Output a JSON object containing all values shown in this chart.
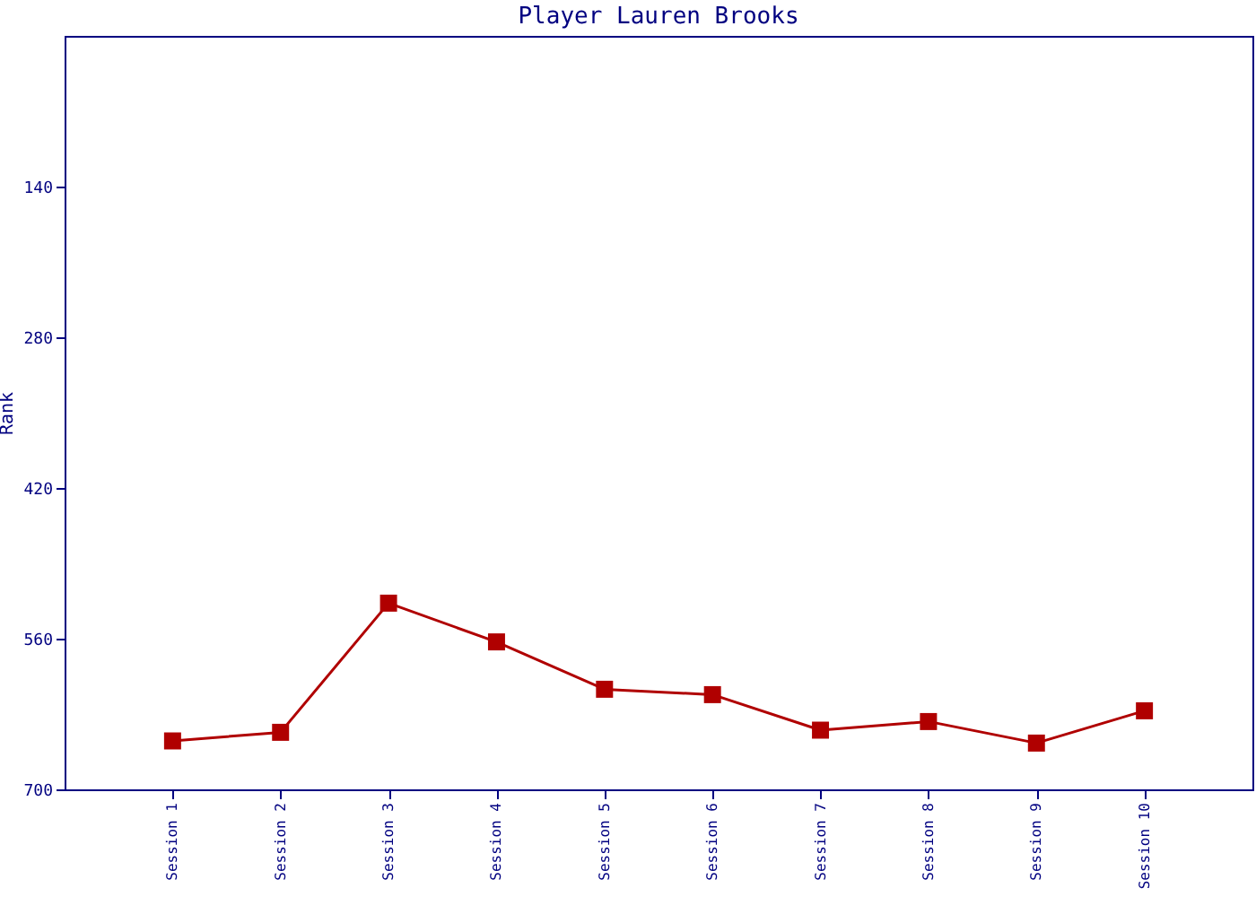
{
  "chart_data": {
    "type": "line",
    "title": "Player Lauren Brooks",
    "ylabel": "Rank",
    "categories": [
      "Session 1",
      "Session 2",
      "Session 3",
      "Session 4",
      "Session 5",
      "Session 6",
      "Session 7",
      "Session 8",
      "Session 9",
      "Session 10"
    ],
    "series": [
      {
        "color": "#b00000",
        "values": [
          655,
          647,
          527,
          563,
          607,
          612,
          645,
          637,
          657,
          627
        ]
      }
    ],
    "ylim": [
      700,
      0
    ],
    "yticks": [
      140,
      280,
      420,
      560,
      700
    ],
    "grid": false,
    "marker": "square",
    "line_style": "solid"
  }
}
